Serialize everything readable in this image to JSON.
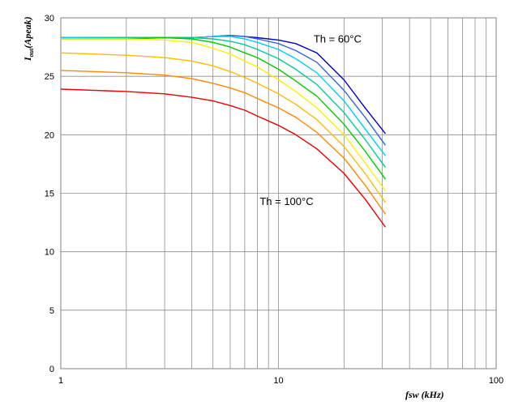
{
  "chart_data": {
    "type": "line",
    "x_scale": "log",
    "xlim": [
      1,
      100
    ],
    "ylim": [
      0,
      30
    ],
    "x_ticks": [
      "1",
      "10",
      "100"
    ],
    "y_ticks": [
      "0",
      "5",
      "10",
      "15",
      "20",
      "25",
      "30"
    ],
    "xlabel": "fsw (kHz)",
    "ylabel": {
      "main": "I",
      "sub": "out",
      "rest": "(Apeak)"
    },
    "grid": true,
    "legend": "none",
    "annotations": [
      {
        "text": "Th = 60°C",
        "x": 14.5,
        "y": 27.9
      },
      {
        "text": "Th = 100°C",
        "x": 8.2,
        "y": 14.0
      }
    ],
    "x": [
      1,
      2,
      3,
      4,
      5,
      6,
      7,
      8,
      10,
      12,
      15,
      20,
      25,
      31
    ],
    "series": [
      {
        "color": "#0000cc",
        "values": [
          28.3,
          28.3,
          28.3,
          28.3,
          28.4,
          28.5,
          28.4,
          28.3,
          28.1,
          27.8,
          27.0,
          24.7,
          22.3,
          20.1
        ]
      },
      {
        "color": "#3366dd",
        "values": [
          28.3,
          28.3,
          28.3,
          28.3,
          28.4,
          28.5,
          28.4,
          28.2,
          27.8,
          27.2,
          26.2,
          23.8,
          21.5,
          19.1
        ]
      },
      {
        "color": "#00ccff",
        "values": [
          28.3,
          28.3,
          28.3,
          28.3,
          28.4,
          28.4,
          28.2,
          27.9,
          27.3,
          26.5,
          25.3,
          22.9,
          20.5,
          18.2
        ]
      },
      {
        "color": "#00cc99",
        "values": [
          28.2,
          28.3,
          28.3,
          28.3,
          28.2,
          28.0,
          27.7,
          27.3,
          26.5,
          25.6,
          24.3,
          21.9,
          19.6,
          17.2
        ]
      },
      {
        "color": "#00cc00",
        "values": [
          28.2,
          28.2,
          28.3,
          28.2,
          27.9,
          27.5,
          27.0,
          26.6,
          25.6,
          24.6,
          23.3,
          20.9,
          18.6,
          16.2
        ]
      },
      {
        "color": "#ffee00",
        "values": [
          28.2,
          28.2,
          28.1,
          27.9,
          27.4,
          26.9,
          26.3,
          25.8,
          24.7,
          23.7,
          22.3,
          20.0,
          17.6,
          15.2
        ]
      },
      {
        "color": "#ffbb00",
        "values": [
          27.0,
          26.8,
          26.6,
          26.3,
          25.9,
          25.4,
          24.9,
          24.4,
          23.5,
          22.6,
          21.3,
          19.0,
          16.7,
          14.2
        ]
      },
      {
        "color": "#ff8800",
        "values": [
          25.5,
          25.3,
          25.1,
          24.8,
          24.4,
          24.0,
          23.6,
          23.1,
          22.3,
          21.5,
          20.2,
          18.0,
          15.7,
          13.2
        ]
      },
      {
        "color": "#ee0000",
        "values": [
          23.9,
          23.7,
          23.5,
          23.2,
          22.9,
          22.5,
          22.1,
          21.6,
          20.8,
          20.0,
          18.8,
          16.7,
          14.5,
          12.1
        ]
      }
    ]
  }
}
